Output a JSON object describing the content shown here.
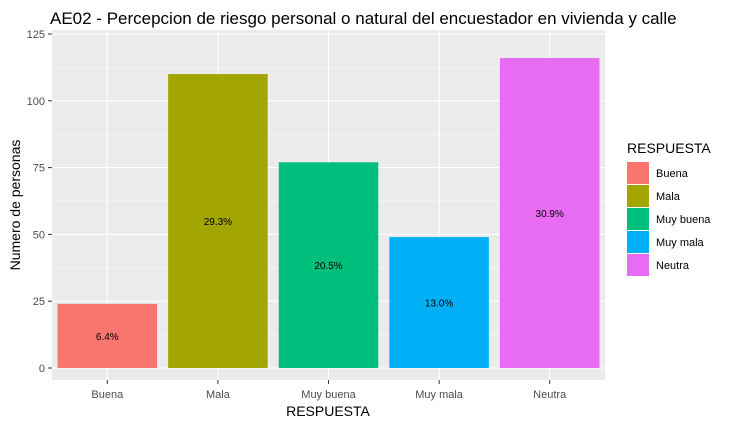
{
  "chart_data": {
    "type": "bar",
    "title": "AE02 - Percepcion de riesgo personal o natural del encuestador en vivienda y calle",
    "xlabel": "RESPUESTA",
    "ylabel": "Numero de personas",
    "ylim": [
      0,
      125
    ],
    "yticks": [
      0,
      25,
      50,
      75,
      100,
      125
    ],
    "categories": [
      "Buena",
      "Mala",
      "Muy buena",
      "Muy mala",
      "Neutra"
    ],
    "values": [
      24,
      110,
      77,
      49,
      116
    ],
    "data_labels": [
      "6.4%",
      "29.3%",
      "20.5%",
      "13.0%",
      "30.9%"
    ],
    "colors": [
      "#F8766D",
      "#A3A500",
      "#00BF7D",
      "#00B0F6",
      "#E76BF3"
    ],
    "grid": true,
    "legend": {
      "title": "RESPUESTA",
      "position": "right",
      "entries": [
        "Buena",
        "Mala",
        "Muy buena",
        "Muy mala",
        "Neutra"
      ]
    }
  }
}
